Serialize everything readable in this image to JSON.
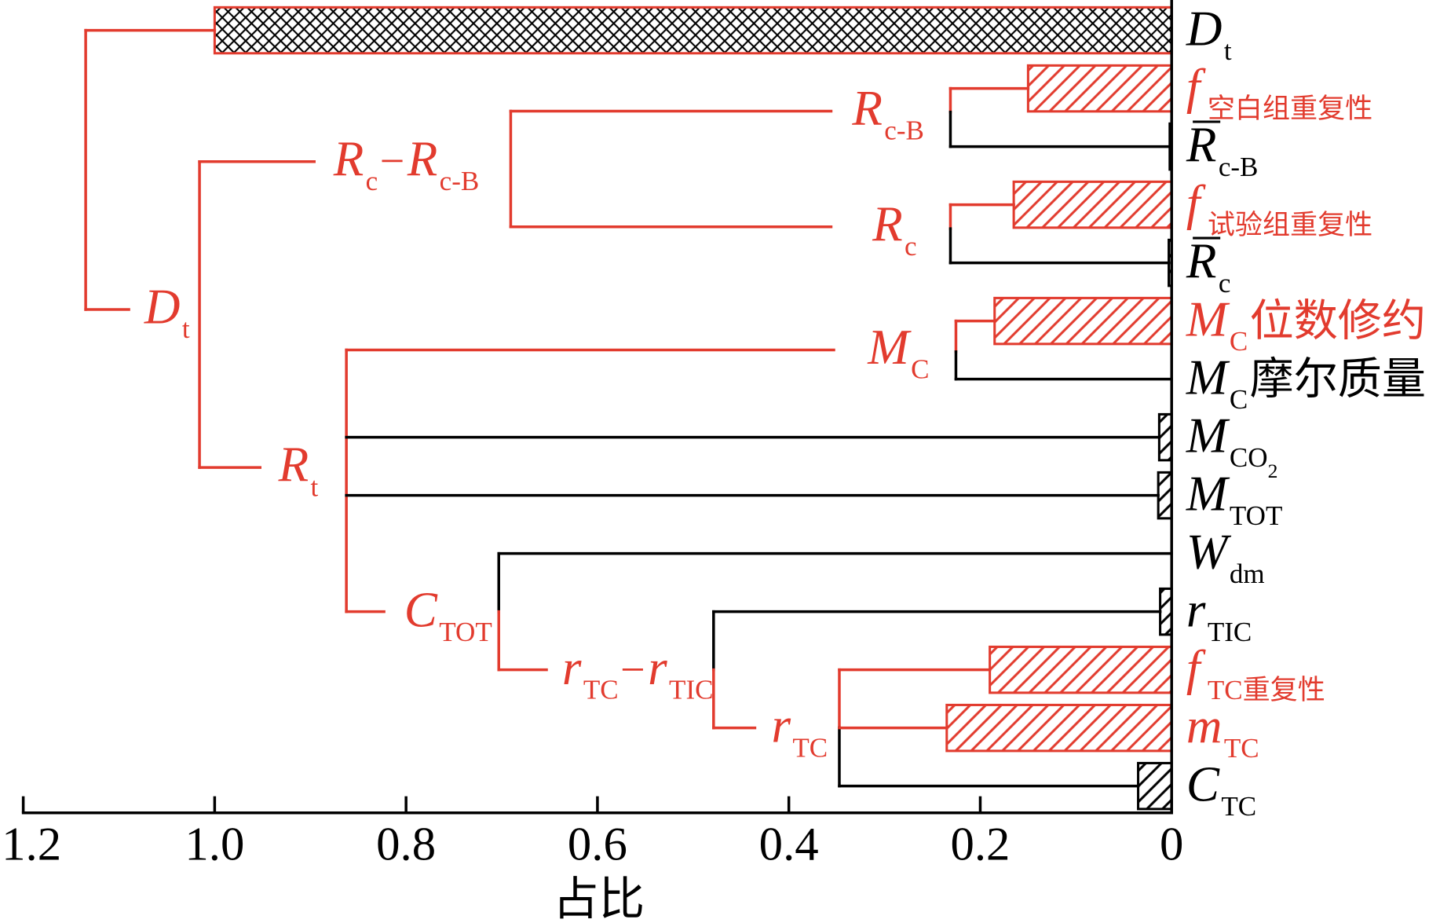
{
  "colors": {
    "highlight": "#e23b2e",
    "normal": "#000000",
    "background": "#ffffff"
  },
  "chart_data": {
    "type": "bar",
    "horizontal": true,
    "x_reversed": true,
    "xlim": [
      1.2,
      0
    ],
    "xticks": [
      1.2,
      1.0,
      0.8,
      0.6,
      0.4,
      0.2,
      0
    ],
    "xtick_labels": [
      "1.2",
      "1.0",
      "0.8",
      "0.6",
      "0.4",
      "0.2",
      "0"
    ],
    "xlabel": "占比",
    "grid": false,
    "categories": [
      {
        "runs": [
          {
            "text": "D",
            "it": true
          },
          {
            "text": "t",
            "sub": true
          }
        ],
        "highlight": false
      },
      {
        "runs": [
          {
            "text": "f",
            "it": true
          },
          {
            "text": "空白组重复性",
            "sub": true
          }
        ],
        "highlight": true
      },
      {
        "runs": [
          {
            "text": "R",
            "it": true,
            "over": true
          },
          {
            "text": "c-B",
            "sub": true
          }
        ],
        "highlight": false
      },
      {
        "runs": [
          {
            "text": "f",
            "it": true
          },
          {
            "text": "试验组重复性",
            "sub": true
          }
        ],
        "highlight": true
      },
      {
        "runs": [
          {
            "text": "R",
            "it": true,
            "over": true
          },
          {
            "text": "c",
            "sub": true
          }
        ],
        "highlight": false
      },
      {
        "runs": [
          {
            "text": "M",
            "it": true
          },
          {
            "text": "C",
            "sub": true
          },
          {
            "text": "位数修约"
          }
        ],
        "highlight": true
      },
      {
        "runs": [
          {
            "text": "M",
            "it": true
          },
          {
            "text": "C",
            "sub": true
          },
          {
            "text": "摩尔质量"
          }
        ],
        "highlight": false
      },
      {
        "runs": [
          {
            "text": "M",
            "it": true
          },
          {
            "text": "CO",
            "sub": true
          },
          {
            "text": "2",
            "sub2": true
          }
        ],
        "highlight": false
      },
      {
        "runs": [
          {
            "text": "M",
            "it": true
          },
          {
            "text": "TOT",
            "sub": true
          }
        ],
        "highlight": false
      },
      {
        "runs": [
          {
            "text": "W",
            "it": true
          },
          {
            "text": "dm",
            "sub": true
          }
        ],
        "highlight": false
      },
      {
        "runs": [
          {
            "text": "r",
            "it": true
          },
          {
            "text": "TIC",
            "sub": true
          }
        ],
        "highlight": false
      },
      {
        "runs": [
          {
            "text": "f",
            "it": true
          },
          {
            "text": "TC重复性",
            "sub": true
          }
        ],
        "highlight": true
      },
      {
        "runs": [
          {
            "text": "m",
            "it": true
          },
          {
            "text": "TC",
            "sub": true
          }
        ],
        "highlight": true
      },
      {
        "runs": [
          {
            "text": "C",
            "it": true
          },
          {
            "text": "TC",
            "sub": true
          }
        ],
        "highlight": false
      }
    ],
    "values": [
      1.0,
      0.15,
      0.002,
      0.165,
      0.003,
      0.185,
      0,
      0.013,
      0.014,
      0,
      0.012,
      0.19,
      0.235,
      0.035
    ],
    "bar_highlight": [
      true,
      true,
      false,
      true,
      false,
      true,
      false,
      false,
      false,
      false,
      false,
      true,
      true,
      false
    ],
    "bar_crosshatch": [
      true,
      false,
      false,
      false,
      false,
      false,
      false,
      false,
      false,
      false,
      false,
      false,
      false,
      false
    ],
    "tree_nodes": [
      {
        "runs": [
          {
            "text": "D",
            "it": true
          },
          {
            "text": "t",
            "sub": true
          }
        ],
        "highlight": true
      },
      {
        "runs": [
          {
            "text": "R",
            "it": true
          },
          {
            "text": "c",
            "sub": true
          },
          {
            "text": "−"
          },
          {
            "text": "R",
            "it": true
          },
          {
            "text": "c-B",
            "sub": true
          }
        ],
        "highlight": true
      },
      {
        "runs": [
          {
            "text": "R",
            "it": true
          },
          {
            "text": "t",
            "sub": true
          }
        ],
        "highlight": true
      },
      {
        "runs": [
          {
            "text": "R",
            "it": true
          },
          {
            "text": "c-B",
            "sub": true
          }
        ],
        "highlight": true
      },
      {
        "runs": [
          {
            "text": "R",
            "it": true
          },
          {
            "text": "c",
            "sub": true
          }
        ],
        "highlight": true
      },
      {
        "runs": [
          {
            "text": "M",
            "it": true
          },
          {
            "text": "C",
            "sub": true
          }
        ],
        "highlight": true
      },
      {
        "runs": [
          {
            "text": "C",
            "it": true
          },
          {
            "text": "TOT",
            "sub": true
          }
        ],
        "highlight": true
      },
      {
        "runs": [
          {
            "text": "r",
            "it": true
          },
          {
            "text": "TC",
            "sub": true
          },
          {
            "text": "−"
          },
          {
            "text": "r",
            "it": true
          },
          {
            "text": "TIC",
            "sub": true
          }
        ],
        "highlight": true
      },
      {
        "runs": [
          {
            "text": "r",
            "it": true
          },
          {
            "text": "TC",
            "sub": true
          }
        ],
        "highlight": true
      }
    ]
  }
}
